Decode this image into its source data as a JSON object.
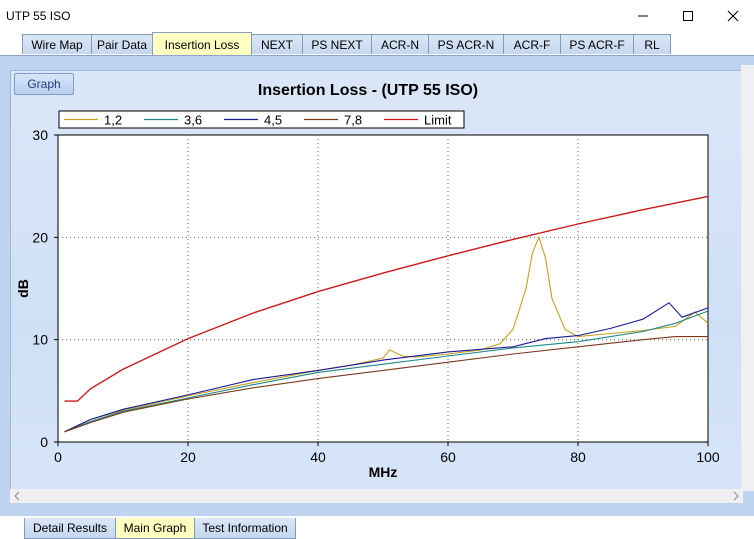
{
  "window": {
    "title": "UTP 55 ISO"
  },
  "top_tabs": [
    {
      "label": "Wire Map"
    },
    {
      "label": "Pair Data"
    },
    {
      "label": "Insertion Loss",
      "active": true
    },
    {
      "label": "NEXT"
    },
    {
      "label": "PS NEXT"
    },
    {
      "label": "ACR-N"
    },
    {
      "label": "PS ACR-N"
    },
    {
      "label": "ACR-F"
    },
    {
      "label": "PS ACR-F"
    },
    {
      "label": "RL"
    }
  ],
  "graph_button": "Graph",
  "bottom_tabs": [
    {
      "label": "Detail Results"
    },
    {
      "label": "Main Graph",
      "active": true
    },
    {
      "label": "Test Information"
    }
  ],
  "colors": {
    "pair12": "#c8a21a",
    "pair36": "#1e8a8a",
    "pair45": "#1a1a9a",
    "pair78": "#7a3a1a",
    "limit": "#cc1a1a"
  },
  "chart_data": {
    "type": "line",
    "title": "Insertion Loss - (UTP 55 ISO)",
    "xlabel": "MHz",
    "ylabel": "dB",
    "xlim": [
      0,
      100
    ],
    "ylim": [
      0,
      30
    ],
    "xticks": [
      "0",
      "20",
      "40",
      "60",
      "80",
      "100"
    ],
    "yticks": [
      "0",
      "10",
      "20",
      "30"
    ],
    "grid": true,
    "legend_position": "top",
    "series": [
      {
        "name": "1,2",
        "color": "#c8a21a",
        "x": [
          1,
          5,
          10,
          20,
          30,
          40,
          45,
          50,
          51,
          53,
          55,
          60,
          65,
          68,
          70,
          72,
          73,
          74,
          75,
          76,
          78,
          80,
          85,
          90,
          95,
          98,
          100
        ],
        "y": [
          1.0,
          2.2,
          3.1,
          4.5,
          5.8,
          7.0,
          7.5,
          8.2,
          9.0,
          8.4,
          8.3,
          8.6,
          9.0,
          9.6,
          11.0,
          15.0,
          18.5,
          20.0,
          18.0,
          14.0,
          11.0,
          10.3,
          10.6,
          10.9,
          11.3,
          12.7,
          11.6
        ]
      },
      {
        "name": "3,6",
        "color": "#1e8a8a",
        "x": [
          1,
          5,
          10,
          20,
          30,
          40,
          50,
          60,
          70,
          80,
          90,
          95,
          100
        ],
        "y": [
          1.0,
          2.0,
          3.0,
          4.3,
          5.6,
          6.8,
          7.6,
          8.4,
          9.2,
          9.8,
          10.8,
          11.6,
          12.8
        ]
      },
      {
        "name": "4,5",
        "color": "#1a1a9a",
        "x": [
          1,
          5,
          10,
          20,
          30,
          40,
          50,
          60,
          70,
          75,
          80,
          85,
          90,
          94,
          96,
          100
        ],
        "y": [
          1.0,
          2.2,
          3.2,
          4.6,
          6.1,
          7.0,
          8.0,
          8.8,
          9.3,
          10.1,
          10.4,
          11.1,
          12.0,
          13.6,
          12.2,
          13.1
        ]
      },
      {
        "name": "7,8",
        "color": "#7a3a1a",
        "x": [
          1,
          5,
          10,
          20,
          30,
          40,
          50,
          60,
          70,
          80,
          90,
          95,
          100
        ],
        "y": [
          1.0,
          1.9,
          2.9,
          4.2,
          5.3,
          6.2,
          7.0,
          7.8,
          8.6,
          9.3,
          10.0,
          10.3,
          10.3
        ]
      },
      {
        "name": "Limit",
        "color": "#cc1a1a",
        "x": [
          1,
          3,
          5,
          10,
          20,
          30,
          40,
          50,
          60,
          70,
          80,
          90,
          100
        ],
        "y": [
          4.0,
          4.0,
          5.2,
          7.1,
          10.1,
          12.6,
          14.7,
          16.5,
          18.2,
          19.8,
          21.3,
          22.7,
          24.0
        ]
      }
    ]
  }
}
